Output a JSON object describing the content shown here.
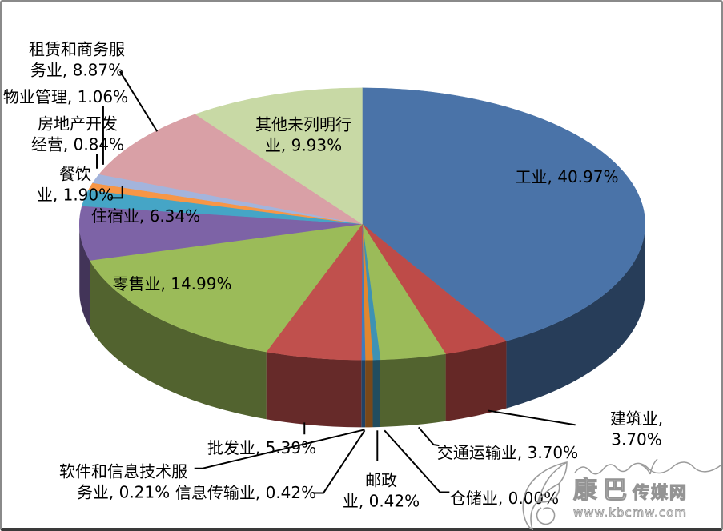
{
  "chart_data": {
    "type": "pie",
    "style": "pie-3d",
    "title": "",
    "legend_position": "none",
    "labels_format": "category, percent",
    "slices": [
      {
        "label": "工业",
        "value": 40.97,
        "display": "工业, 40.97%",
        "color": "#4A73A8"
      },
      {
        "label": "建筑业",
        "value": 3.7,
        "display": "建筑业, 3.70%",
        "color": "#BE4B48"
      },
      {
        "label": "交通运输业",
        "value": 3.7,
        "display": "交通运输业, 3.70%",
        "color": "#9BBB59"
      },
      {
        "label": "仓储业",
        "value": 0.0,
        "display": "仓储业, 0.00%",
        "color": "#8064A2"
      },
      {
        "label": "邮政业",
        "value": 0.42,
        "display": "邮政\n业, 0.42%",
        "color": "#3E92B4"
      },
      {
        "label": "信息传输业",
        "value": 0.42,
        "display": "信息传输业, 0.42%",
        "color": "#E2872F"
      },
      {
        "label": "软件和信息技术服务业",
        "value": 0.21,
        "display": "软件和信息技术服\n务业, 0.21%",
        "color": "#3F7CBE"
      },
      {
        "label": "批发业",
        "value": 5.39,
        "display": "批发业, 5.39%",
        "color": "#C0504D"
      },
      {
        "label": "零售业",
        "value": 14.99,
        "display": "零售业, 14.99%",
        "color": "#9BBB59"
      },
      {
        "label": "住宿业",
        "value": 6.34,
        "display": "住宿业, 6.34%",
        "color": "#7D63A6"
      },
      {
        "label": "餐饮业",
        "value": 1.9,
        "display": "餐饮\n业, 1.90%",
        "color": "#45A5C6"
      },
      {
        "label": "房地产开发经营",
        "value": 0.84,
        "display": "房地产开发\n经营, 0.84%",
        "color": "#F79646"
      },
      {
        "label": "物业管理",
        "value": 1.06,
        "display": "物业管理, 1.06%",
        "color": "#A3B4DC"
      },
      {
        "label": "租赁和商务服务业",
        "value": 8.87,
        "display": "租赁和商务服\n务业, 8.87%",
        "color": "#D9A0A6"
      },
      {
        "label": "其他未列明行业",
        "value": 9.93,
        "display": "其他未列明行\n业, 9.93%",
        "color": "#C8D9A5"
      }
    ]
  },
  "watermark": {
    "name_large": "康巴",
    "name_small": "传媒网",
    "url": "www.kbcmw.com"
  }
}
